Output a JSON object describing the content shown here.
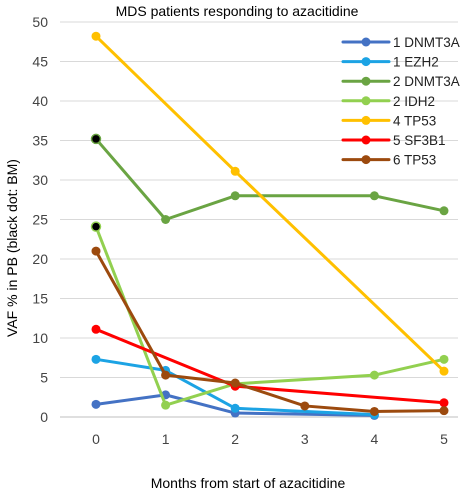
{
  "chart_data": {
    "type": "line",
    "title": "MDS patients responding to azacitidine",
    "xlabel": "Months from start of azacitidine",
    "ylabel": "VAF % in PB (black dot: BM)",
    "xlim": [
      0,
      5
    ],
    "ylim": [
      0,
      50
    ],
    "x_ticks": [
      "0",
      "1",
      "2",
      "3",
      "4",
      "5"
    ],
    "y_ticks": [
      "0",
      "5",
      "10",
      "15",
      "20",
      "25",
      "30",
      "35",
      "40",
      "45",
      "50"
    ],
    "grid": "horizontal",
    "legend_position": "top-right",
    "series": [
      {
        "name": "1 DNMT3A",
        "color": "#4472C4",
        "points": [
          [
            0,
            1.6
          ],
          [
            1,
            2.8
          ],
          [
            2,
            0.5
          ],
          [
            4,
            0.2
          ]
        ],
        "bm_points": []
      },
      {
        "name": "1 EZH2",
        "color": "#1CA3E4",
        "points": [
          [
            0,
            7.3
          ],
          [
            1,
            5.9
          ],
          [
            2,
            1.1
          ],
          [
            4,
            0.3
          ]
        ],
        "bm_points": []
      },
      {
        "name": "2 DNMT3A",
        "color": "#6AA443",
        "points": [
          [
            0,
            35.2
          ],
          [
            1,
            25.0
          ],
          [
            2,
            28.0
          ],
          [
            4,
            28.0
          ],
          [
            5,
            26.1
          ]
        ],
        "bm_points": [
          0
        ]
      },
      {
        "name": "2 IDH2",
        "color": "#92D050",
        "points": [
          [
            0,
            24.1
          ],
          [
            1,
            1.5
          ],
          [
            2,
            4.2
          ],
          [
            4,
            5.3
          ],
          [
            5,
            7.3
          ]
        ],
        "bm_points": [
          0
        ]
      },
      {
        "name": "4 TP53",
        "color": "#FFC000",
        "points": [
          [
            0,
            48.2
          ],
          [
            2,
            31.1
          ],
          [
            5,
            5.8
          ]
        ],
        "bm_points": []
      },
      {
        "name": "5 SF3B1",
        "color": "#FF0000",
        "points": [
          [
            0,
            11.1
          ],
          [
            2,
            3.9
          ],
          [
            5,
            1.8
          ]
        ],
        "bm_points": []
      },
      {
        "name": "6 TP53",
        "color": "#9C4A0E",
        "points": [
          [
            0,
            21.0
          ],
          [
            1,
            5.3
          ],
          [
            2,
            4.3
          ],
          [
            3,
            1.4
          ],
          [
            4,
            0.7
          ],
          [
            5,
            0.8
          ]
        ],
        "bm_points": []
      }
    ]
  }
}
